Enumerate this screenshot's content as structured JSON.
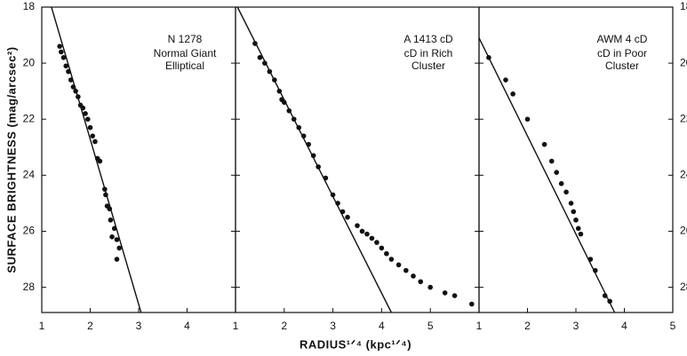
{
  "chart_data": [
    {
      "type": "scatter",
      "annotation": [
        "N 1278",
        "Normal Giant",
        "Elliptical"
      ],
      "ylabel": "SURFACE BRIGHTNESS (mag/arcsec²)",
      "x": [
        1.37,
        1.4,
        1.45,
        1.5,
        1.55,
        1.6,
        1.65,
        1.7,
        1.75,
        1.8,
        1.85,
        1.9,
        1.95,
        2.0,
        2.05,
        2.1,
        2.15,
        2.2,
        2.3,
        2.32,
        2.35,
        2.4,
        2.42,
        2.45,
        2.5,
        2.55,
        2.6,
        2.55
      ],
      "values": [
        19.4,
        19.6,
        19.8,
        20.1,
        20.3,
        20.6,
        20.85,
        21.0,
        21.2,
        21.5,
        21.6,
        21.8,
        22.0,
        22.3,
        22.6,
        22.8,
        23.4,
        23.5,
        24.5,
        24.7,
        25.1,
        25.2,
        25.6,
        26.2,
        25.9,
        26.3,
        26.6,
        27.0
      ],
      "fit_line": {
        "x": [
          1.2,
          3.05
        ],
        "values": [
          18,
          28.9
        ]
      },
      "xlim": [
        1,
        5
      ],
      "xticks": [
        1,
        2,
        3,
        4
      ],
      "ylim": [
        18,
        28.9
      ],
      "yticks": [
        18,
        20,
        22,
        24,
        26,
        28
      ],
      "ytick_labels": "left",
      "color": "#111111"
    },
    {
      "type": "scatter",
      "annotation": [
        "A 1413 cD",
        "cD in Rich",
        "Cluster"
      ],
      "xlabel": "RADIUS¹ᐟ⁴ (kpc¹ᐟ⁴)",
      "x": [
        1.4,
        1.5,
        1.6,
        1.7,
        1.8,
        1.9,
        1.95,
        2.0,
        2.1,
        2.2,
        2.3,
        2.4,
        2.5,
        2.6,
        2.7,
        2.85,
        3.0,
        3.1,
        3.2,
        3.3,
        3.5,
        3.6,
        3.7,
        3.8,
        3.9,
        4.0,
        4.1,
        4.2,
        4.35,
        4.5,
        4.65,
        4.8,
        5.0,
        5.3,
        5.5,
        5.85
      ],
      "values": [
        19.3,
        19.8,
        20.0,
        20.3,
        20.6,
        21.0,
        21.3,
        21.4,
        21.7,
        22.0,
        22.3,
        22.6,
        22.9,
        23.3,
        23.7,
        24.1,
        24.7,
        25.0,
        25.3,
        25.5,
        25.8,
        26.0,
        26.1,
        26.25,
        26.4,
        26.6,
        26.8,
        27.0,
        27.2,
        27.4,
        27.6,
        27.8,
        28.0,
        28.2,
        28.3,
        28.6
      ],
      "fit_line": {
        "x": [
          1.04,
          4.2
        ],
        "values": [
          18,
          28.9
        ]
      },
      "xlim": [
        1,
        6
      ],
      "xticks": [
        1,
        2,
        3,
        4,
        5
      ],
      "ylim": [
        18,
        28.9
      ],
      "yticks": [
        18,
        20,
        22,
        24,
        26,
        28
      ],
      "ytick_labels": "none",
      "color": "#111111"
    },
    {
      "type": "scatter",
      "annotation": [
        "AWM 4 cD",
        "cD in Poor",
        "Cluster"
      ],
      "x": [
        1.2,
        1.55,
        1.7,
        2.0,
        2.35,
        2.5,
        2.6,
        2.7,
        2.8,
        2.9,
        2.95,
        3.0,
        3.05,
        3.1,
        3.3,
        3.4,
        3.6,
        3.7
      ],
      "values": [
        19.8,
        20.6,
        21.1,
        22.0,
        22.9,
        23.5,
        23.9,
        24.3,
        24.6,
        25.0,
        25.3,
        25.6,
        25.9,
        26.1,
        27.0,
        27.4,
        28.3,
        28.5
      ],
      "fit_line": {
        "x": [
          1,
          3.8
        ],
        "values": [
          19.1,
          28.9
        ]
      },
      "xlim": [
        1,
        5
      ],
      "xticks": [
        1,
        2,
        3,
        4,
        5
      ],
      "ylim": [
        18,
        28.9
      ],
      "yticks": [
        18,
        20,
        22,
        24,
        26,
        28
      ],
      "ytick_labels": "right",
      "color": "#111111"
    }
  ]
}
